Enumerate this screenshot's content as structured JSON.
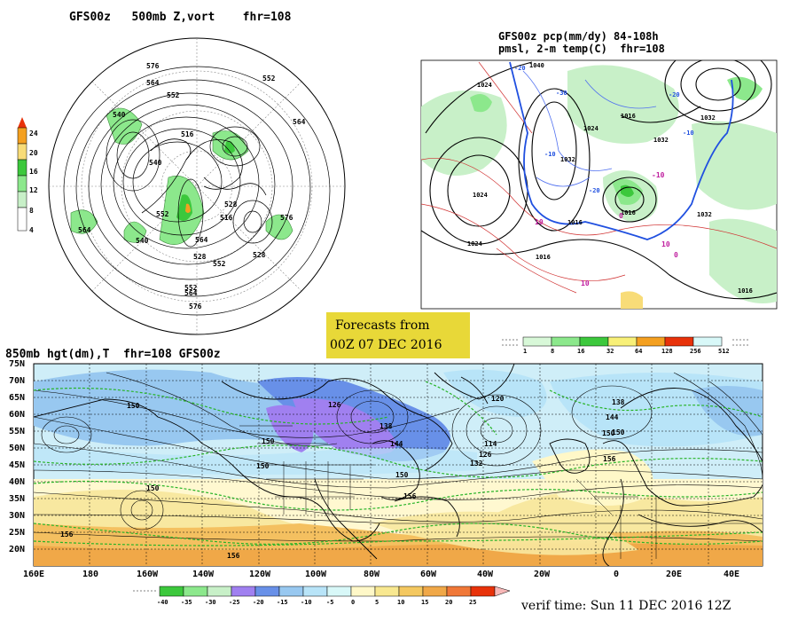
{
  "panel_500mb": {
    "title": "GFS00z   500mb Z,vort    fhr=108",
    "scale_labels": [
      "24",
      "20",
      "16",
      "12",
      "8",
      "4"
    ],
    "scale_colors": [
      "#e8320a",
      "#f4a020",
      "#f8dc78",
      "#3cc83c",
      "#8ce88c",
      "#d8f8d8"
    ],
    "contour_labels": [
      "576",
      "564",
      "552",
      "540",
      "516",
      "540",
      "528",
      "552",
      "564",
      "516",
      "564",
      "552",
      "576",
      "528",
      "564",
      "552",
      "540",
      "528",
      "576",
      "564",
      "552"
    ]
  },
  "panel_pcp": {
    "title_line1": "GFS00z pcp(mm/dy) 84-108h",
    "title_line2": "pmsl, 2-m temp(C)  fhr=108",
    "scale_labels": [
      "1",
      "8",
      "16",
      "32",
      "64",
      "128",
      "256",
      "512"
    ],
    "scale_colors": [
      "#d8f8d8",
      "#8ce88c",
      "#3cc83c",
      "#f8f078",
      "#f4a020",
      "#e8320a",
      "#d8f8f8"
    ],
    "isobar_labels": [
      "1024",
      "1040",
      "1016",
      "1024",
      "1032",
      "1032",
      "1024",
      "1016",
      "1032",
      "1024",
      "1016",
      "1016",
      "1032",
      "1016"
    ],
    "temp_labels": [
      "-20",
      "-30",
      "-20",
      "-10",
      "-20",
      "-10",
      "0",
      "10",
      "10",
      "10",
      "-10",
      "0"
    ]
  },
  "banner": {
    "line1": "Forecasts from",
    "line2": "00Z 07 DEC 2016"
  },
  "panel_850mb": {
    "title": "850mb hgt(dm),T  fhr=108 GFS00z",
    "lat_labels": [
      "75N",
      "70N",
      "65N",
      "60N",
      "55N",
      "50N",
      "45N",
      "40N",
      "35N",
      "30N",
      "25N",
      "20N"
    ],
    "lon_labels": [
      "160E",
      "180",
      "160W",
      "140W",
      "120W",
      "100W",
      "80W",
      "60W",
      "40W",
      "20W",
      "0",
      "20E",
      "40E"
    ],
    "height_labels": [
      "150",
      "126",
      "120",
      "138",
      "138",
      "144",
      "150",
      "150",
      "114",
      "126",
      "132",
      "150",
      "156",
      "156",
      "144",
      "150",
      "150",
      "156",
      "156",
      "150"
    ],
    "temp_scale_labels": [
      "-40",
      "-35",
      "-30",
      "-25",
      "-20",
      "-15",
      "-10",
      "-5",
      "0",
      "5",
      "10",
      "15",
      "20",
      "25"
    ],
    "temp_scale_colors": [
      "#3cc83c",
      "#8ce88c",
      "#c8f0c8",
      "#a080f0",
      "#6890e8",
      "#98c8f0",
      "#b8e4f8",
      "#d8f8f8",
      "#fff8c8",
      "#f8e890",
      "#f4c860",
      "#f0a848",
      "#e8320a"
    ]
  },
  "verif": "verif time: Sun 11 DEC 2016 12Z",
  "chart_data": {
    "type": "map",
    "lat_axis": [
      "75N",
      "70N",
      "65N",
      "60N",
      "55N",
      "50N",
      "45N",
      "40N",
      "35N",
      "30N",
      "25N",
      "20N"
    ],
    "lon_axis": [
      "160E",
      "180",
      "160W",
      "140W",
      "120W",
      "100W",
      "80W",
      "60W",
      "40W",
      "20W",
      "0",
      "20E",
      "40E"
    ]
  }
}
